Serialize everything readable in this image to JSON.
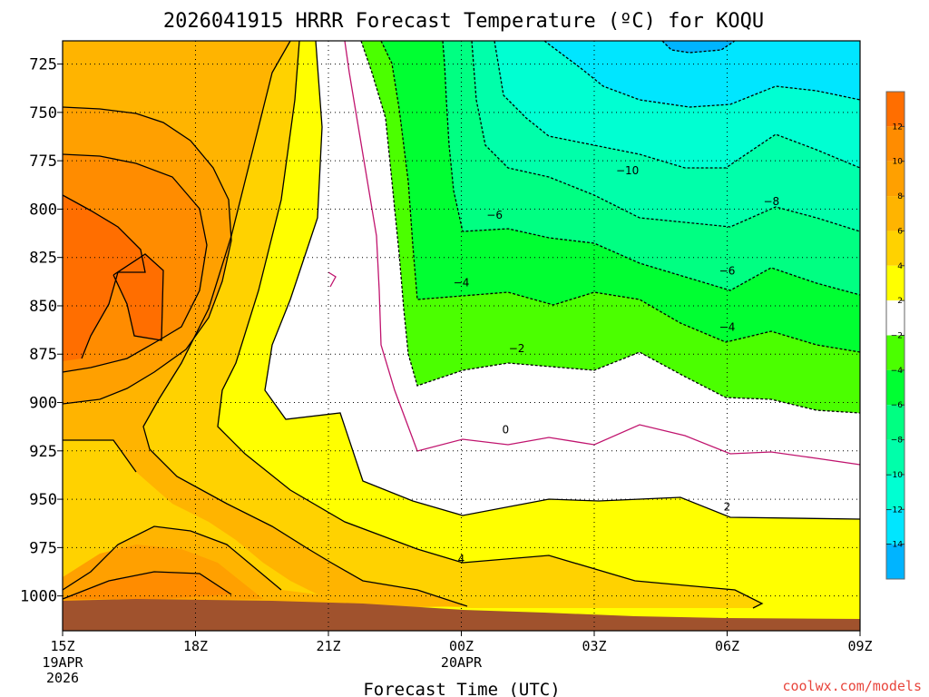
{
  "chart_data": {
    "type": "contour",
    "title": "2026041915 HRRR Forecast Temperature (ºC) for KOQU",
    "xlabel": "Forecast Time (UTC)",
    "ylabel": "",
    "credit": "coolwx.com/models",
    "y_scale": "pressure (hPa), inverted",
    "y_ticks": [
      725,
      750,
      775,
      800,
      825,
      850,
      875,
      900,
      925,
      950,
      975,
      1000
    ],
    "ylim": [
      1018,
      713
    ],
    "x_ticks": [
      {
        "label": "15Z",
        "sub": [
          "19APR",
          "2026"
        ],
        "hours": 0
      },
      {
        "label": "18Z",
        "sub": [],
        "hours": 3
      },
      {
        "label": "21Z",
        "sub": [],
        "hours": 6
      },
      {
        "label": "00Z",
        "sub": [
          "20APR"
        ],
        "hours": 9
      },
      {
        "label": "03Z",
        "sub": [],
        "hours": 12
      },
      {
        "label": "06Z",
        "sub": [],
        "hours": 15
      },
      {
        "label": "09Z",
        "sub": [],
        "hours": 18
      }
    ],
    "xlim_hours": [
      0,
      18
    ],
    "grid": "dotted",
    "colorbar": {
      "placement": "right",
      "bins": [
        {
          "lo": 12,
          "hi": 14,
          "color": "#ff6e00"
        },
        {
          "lo": 10,
          "hi": 12,
          "color": "#ff8c00"
        },
        {
          "lo": 8,
          "hi": 10,
          "color": "#ffa000"
        },
        {
          "lo": 6,
          "hi": 8,
          "color": "#ffb400"
        },
        {
          "lo": 4,
          "hi": 6,
          "color": "#ffd200"
        },
        {
          "lo": 2,
          "hi": 4,
          "color": "#ffff00"
        },
        {
          "lo": -2,
          "hi": 2,
          "color": "#ffffff"
        },
        {
          "lo": -4,
          "hi": -2,
          "color": "#4bff00"
        },
        {
          "lo": -6,
          "hi": -4,
          "color": "#00ff32"
        },
        {
          "lo": -8,
          "hi": -6,
          "color": "#00ff82"
        },
        {
          "lo": -10,
          "hi": -8,
          "color": "#00ffaa"
        },
        {
          "lo": -12,
          "hi": -10,
          "color": "#00ffd2"
        },
        {
          "lo": -14,
          "hi": -12,
          "color": "#00e6ff"
        },
        {
          "lo": -16,
          "hi": -14,
          "color": "#00b4ff"
        }
      ],
      "tick_labels": [
        "12",
        "10",
        "8",
        "6",
        "4",
        "2",
        "−2",
        "−4",
        "−6",
        "−8",
        "−10",
        "−12",
        "−14"
      ]
    },
    "contour_labels": [
      {
        "text": "−10",
        "hours": 12.75,
        "p": 780
      },
      {
        "text": "−8",
        "hours": 16.0,
        "p": 796
      },
      {
        "text": "−6",
        "hours": 9.75,
        "p": 803
      },
      {
        "text": "−6",
        "hours": 15.0,
        "p": 832
      },
      {
        "text": "−4",
        "hours": 9.0,
        "p": 838
      },
      {
        "text": "−4",
        "hours": 15.0,
        "p": 861
      },
      {
        "text": "−2",
        "hours": 10.25,
        "p": 872
      },
      {
        "text": "0",
        "hours": 10.0,
        "p": 914
      },
      {
        "text": "2",
        "hours": 15.0,
        "p": 954
      },
      {
        "text": "4",
        "hours": 9.0,
        "p": 981
      }
    ],
    "ground_color": "#a0522d"
  }
}
